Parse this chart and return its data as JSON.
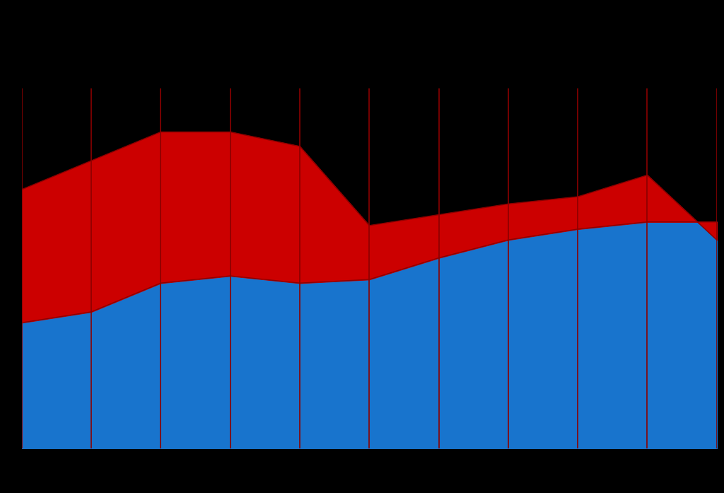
{
  "background_color": "#000000",
  "blue_color": "#1874CD",
  "red_color": "#CC0000",
  "border_color": "#8B0000",
  "x_values": [
    0,
    1,
    2,
    3,
    4,
    5,
    6,
    7,
    8,
    9,
    10
  ],
  "blue_values": [
    35,
    38,
    46,
    48,
    46,
    47,
    53,
    58,
    61,
    63,
    63
  ],
  "total_values": [
    72,
    80,
    88,
    88,
    84,
    62,
    65,
    68,
    70,
    76,
    58
  ]
}
